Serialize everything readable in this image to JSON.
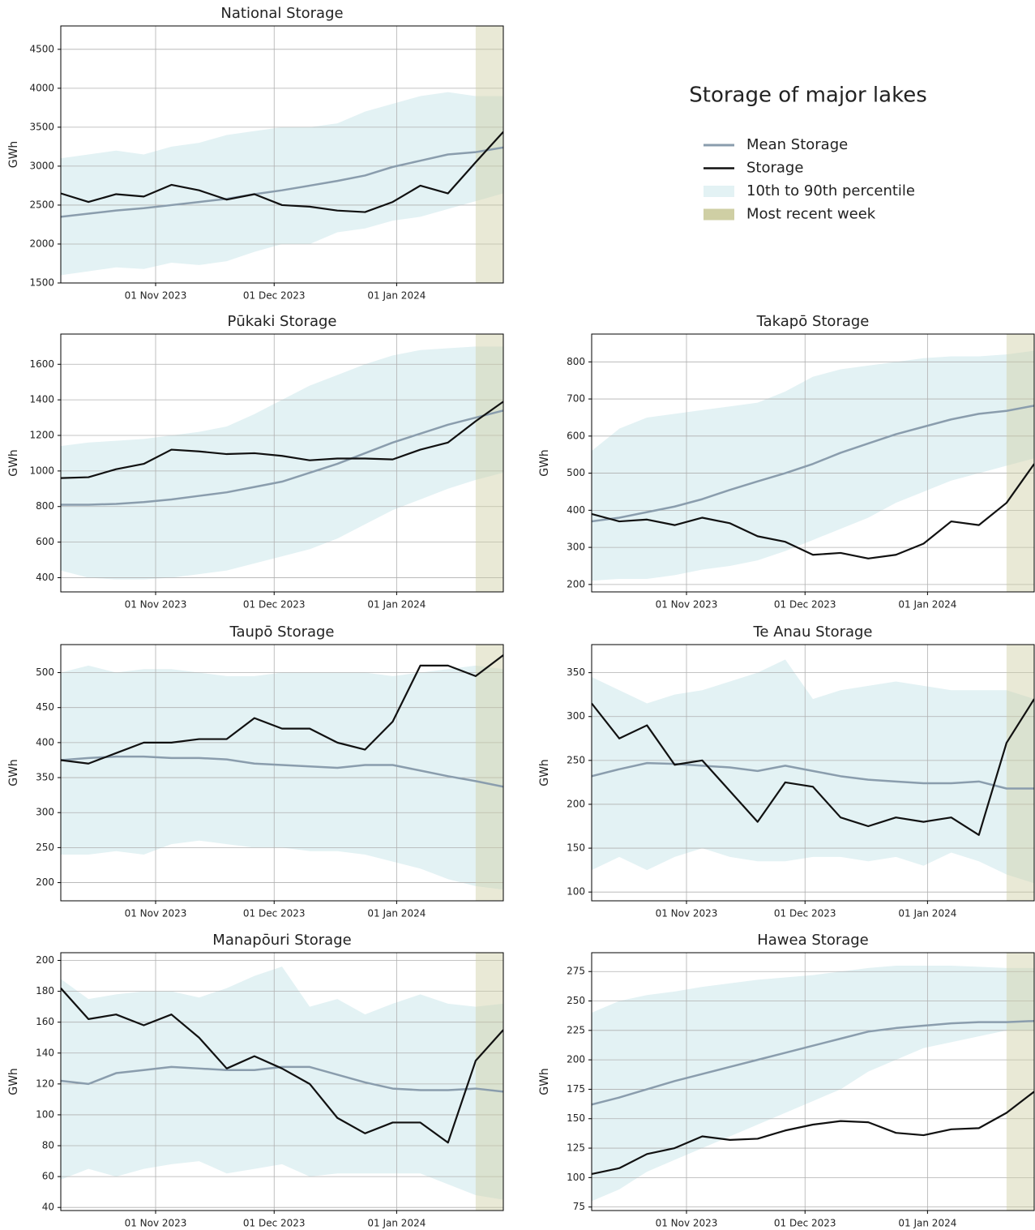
{
  "title": "Storage of major lakes",
  "legend": [
    {
      "name": "Mean Storage",
      "color": "#8a9dad"
    },
    {
      "name": "Storage",
      "color": "#111111"
    },
    {
      "name": "10th to 90th percentile",
      "color": "#e3f2f4"
    },
    {
      "name": "Most recent week",
      "color": "#cfcfa4"
    }
  ],
  "recent_week": [
    "2024-01-21",
    "2024-01-28"
  ],
  "chart_data": [
    {
      "type": "line",
      "title": "National Storage",
      "ylabel": "GWh",
      "grid": true,
      "x": [
        "2023-10-08",
        "2023-10-15",
        "2023-10-22",
        "2023-10-29",
        "2023-11-05",
        "2023-11-12",
        "2023-11-19",
        "2023-11-26",
        "2023-12-03",
        "2023-12-10",
        "2023-12-17",
        "2023-12-24",
        "2023-12-31",
        "2024-01-07",
        "2024-01-14",
        "2024-01-21",
        "2024-01-28"
      ],
      "xlim": [
        "2023-10-08",
        "2024-01-28"
      ],
      "xticks": [
        {
          "value": "2023-11-01",
          "label": "01 Nov 2023"
        },
        {
          "value": "2023-12-01",
          "label": "01 Dec 2023"
        },
        {
          "value": "2024-01-01",
          "label": "01 Jan 2024"
        }
      ],
      "ylim": [
        1500,
        4800
      ],
      "yticks": [
        1500,
        2000,
        2500,
        3000,
        3500,
        4000,
        4500
      ],
      "storage": [
        2650,
        2540,
        2640,
        2610,
        2760,
        2690,
        2570,
        2640,
        2500,
        2480,
        2430,
        2410,
        2540,
        2750,
        2650,
        3050,
        3440
      ],
      "mean": [
        2350,
        2390,
        2430,
        2460,
        2500,
        2540,
        2580,
        2640,
        2690,
        2750,
        2810,
        2880,
        2990,
        3070,
        3150,
        3180,
        3240
      ],
      "p10": [
        1600,
        1650,
        1700,
        1680,
        1760,
        1730,
        1780,
        1900,
        2000,
        2000,
        2150,
        2200,
        2300,
        2350,
        2450,
        2550,
        2650
      ],
      "p90": [
        3100,
        3150,
        3200,
        3150,
        3250,
        3300,
        3400,
        3450,
        3500,
        3500,
        3550,
        3700,
        3800,
        3900,
        3950,
        3900,
        3900
      ]
    },
    {
      "type": "line",
      "title": "Pūkaki Storage",
      "ylabel": "GWh",
      "grid": true,
      "x": [
        "2023-10-08",
        "2023-10-15",
        "2023-10-22",
        "2023-10-29",
        "2023-11-05",
        "2023-11-12",
        "2023-11-19",
        "2023-11-26",
        "2023-12-03",
        "2023-12-10",
        "2023-12-17",
        "2023-12-24",
        "2023-12-31",
        "2024-01-07",
        "2024-01-14",
        "2024-01-21",
        "2024-01-28"
      ],
      "xlim": [
        "2023-10-08",
        "2024-01-28"
      ],
      "xticks": [
        {
          "value": "2023-11-01",
          "label": "01 Nov 2023"
        },
        {
          "value": "2023-12-01",
          "label": "01 Dec 2023"
        },
        {
          "value": "2024-01-01",
          "label": "01 Jan 2024"
        }
      ],
      "ylim": [
        320,
        1770
      ],
      "yticks": [
        400,
        600,
        800,
        1000,
        1200,
        1400,
        1600
      ],
      "storage": [
        960,
        965,
        1010,
        1040,
        1120,
        1110,
        1095,
        1100,
        1085,
        1060,
        1070,
        1070,
        1065,
        1120,
        1160,
        1280,
        1390
      ],
      "mean": [
        810,
        810,
        815,
        825,
        840,
        860,
        880,
        910,
        940,
        990,
        1040,
        1100,
        1160,
        1210,
        1260,
        1300,
        1340
      ],
      "p10": [
        440,
        400,
        390,
        390,
        400,
        420,
        440,
        480,
        520,
        560,
        620,
        700,
        780,
        840,
        900,
        950,
        990
      ],
      "p90": [
        1140,
        1160,
        1170,
        1180,
        1200,
        1220,
        1250,
        1320,
        1400,
        1480,
        1540,
        1600,
        1650,
        1680,
        1690,
        1700,
        1700
      ]
    },
    {
      "type": "line",
      "title": "Takapō Storage",
      "ylabel": "GWh",
      "grid": true,
      "x": [
        "2023-10-08",
        "2023-10-15",
        "2023-10-22",
        "2023-10-29",
        "2023-11-05",
        "2023-11-12",
        "2023-11-19",
        "2023-11-26",
        "2023-12-03",
        "2023-12-10",
        "2023-12-17",
        "2023-12-24",
        "2023-12-31",
        "2024-01-07",
        "2024-01-14",
        "2024-01-21",
        "2024-01-28"
      ],
      "xlim": [
        "2023-10-08",
        "2024-01-28"
      ],
      "xticks": [
        {
          "value": "2023-11-01",
          "label": "01 Nov 2023"
        },
        {
          "value": "2023-12-01",
          "label": "01 Dec 2023"
        },
        {
          "value": "2024-01-01",
          "label": "01 Jan 2024"
        }
      ],
      "ylim": [
        180,
        875
      ],
      "yticks": [
        200,
        300,
        400,
        500,
        600,
        700,
        800
      ],
      "storage": [
        390,
        370,
        375,
        360,
        380,
        365,
        330,
        315,
        280,
        285,
        270,
        280,
        310,
        370,
        360,
        420,
        525
      ],
      "mean": [
        370,
        380,
        395,
        410,
        430,
        455,
        478,
        500,
        525,
        555,
        580,
        605,
        625,
        645,
        660,
        668,
        682
      ],
      "p10": [
        210,
        215,
        215,
        225,
        240,
        250,
        265,
        290,
        320,
        350,
        380,
        420,
        450,
        480,
        500,
        520,
        540
      ],
      "p90": [
        560,
        620,
        650,
        660,
        670,
        680,
        690,
        720,
        760,
        780,
        790,
        800,
        810,
        815,
        815,
        820,
        830
      ]
    },
    {
      "type": "line",
      "title": "Taupō Storage",
      "ylabel": "GWh",
      "grid": true,
      "x": [
        "2023-10-08",
        "2023-10-15",
        "2023-10-22",
        "2023-10-29",
        "2023-11-05",
        "2023-11-12",
        "2023-11-19",
        "2023-11-26",
        "2023-12-03",
        "2023-12-10",
        "2023-12-17",
        "2023-12-24",
        "2023-12-31",
        "2024-01-07",
        "2024-01-14",
        "2024-01-21",
        "2024-01-28"
      ],
      "xlim": [
        "2023-10-08",
        "2024-01-28"
      ],
      "xticks": [
        {
          "value": "2023-11-01",
          "label": "01 Nov 2023"
        },
        {
          "value": "2023-12-01",
          "label": "01 Dec 2023"
        },
        {
          "value": "2024-01-01",
          "label": "01 Jan 2024"
        }
      ],
      "ylim": [
        174,
        540
      ],
      "yticks": [
        200,
        250,
        300,
        350,
        400,
        450,
        500
      ],
      "storage": [
        375,
        370,
        385,
        400,
        400,
        405,
        405,
        435,
        420,
        420,
        400,
        390,
        430,
        510,
        510,
        495,
        525
      ],
      "mean": [
        375,
        378,
        380,
        380,
        378,
        378,
        376,
        370,
        368,
        366,
        364,
        368,
        368,
        360,
        352,
        345,
        337
      ],
      "p10": [
        240,
        240,
        245,
        240,
        255,
        260,
        255,
        250,
        250,
        245,
        245,
        240,
        230,
        220,
        205,
        195,
        190
      ],
      "p90": [
        500,
        510,
        500,
        505,
        505,
        500,
        495,
        495,
        500,
        500,
        500,
        500,
        495,
        500,
        505,
        510,
        505
      ]
    },
    {
      "type": "line",
      "title": "Te Anau Storage",
      "ylabel": "GWh",
      "grid": true,
      "x": [
        "2023-10-08",
        "2023-10-15",
        "2023-10-22",
        "2023-10-29",
        "2023-11-05",
        "2023-11-12",
        "2023-11-19",
        "2023-11-26",
        "2023-12-03",
        "2023-12-10",
        "2023-12-17",
        "2023-12-24",
        "2023-12-31",
        "2024-01-07",
        "2024-01-14",
        "2024-01-21",
        "2024-01-28"
      ],
      "xlim": [
        "2023-10-08",
        "2024-01-28"
      ],
      "xticks": [
        {
          "value": "2023-11-01",
          "label": "01 Nov 2023"
        },
        {
          "value": "2023-12-01",
          "label": "01 Dec 2023"
        },
        {
          "value": "2024-01-01",
          "label": "01 Jan 2024"
        }
      ],
      "ylim": [
        90,
        382
      ],
      "yticks": [
        100,
        150,
        200,
        250,
        300,
        350
      ],
      "storage": [
        315,
        275,
        290,
        245,
        250,
        215,
        180,
        225,
        220,
        185,
        175,
        185,
        180,
        185,
        165,
        270,
        320
      ],
      "mean": [
        232,
        240,
        247,
        246,
        244,
        242,
        238,
        244,
        238,
        232,
        228,
        226,
        224,
        224,
        226,
        218,
        218
      ],
      "p10": [
        125,
        140,
        125,
        140,
        150,
        140,
        135,
        135,
        140,
        140,
        135,
        140,
        130,
        145,
        135,
        120,
        110
      ],
      "p90": [
        345,
        330,
        315,
        325,
        330,
        340,
        350,
        365,
        320,
        330,
        335,
        340,
        335,
        330,
        330,
        330,
        320
      ]
    },
    {
      "type": "line",
      "title": "Manapōuri  Storage",
      "ylabel": "GWh",
      "grid": true,
      "x": [
        "2023-10-08",
        "2023-10-15",
        "2023-10-22",
        "2023-10-29",
        "2023-11-05",
        "2023-11-12",
        "2023-11-19",
        "2023-11-26",
        "2023-12-03",
        "2023-12-10",
        "2023-12-17",
        "2023-12-24",
        "2023-12-31",
        "2024-01-07",
        "2024-01-14",
        "2024-01-21",
        "2024-01-28"
      ],
      "xlim": [
        "2023-10-08",
        "2024-01-28"
      ],
      "xticks": [
        {
          "value": "2023-11-01",
          "label": "01 Nov 2023"
        },
        {
          "value": "2023-12-01",
          "label": "01 Dec 2023"
        },
        {
          "value": "2024-01-01",
          "label": "01 Jan 2024"
        }
      ],
      "ylim": [
        38,
        205
      ],
      "yticks": [
        40,
        60,
        80,
        100,
        120,
        140,
        160,
        180,
        200
      ],
      "storage": [
        182,
        162,
        165,
        158,
        165,
        150,
        130,
        138,
        130,
        120,
        98,
        88,
        95,
        95,
        82,
        135,
        155
      ],
      "mean": [
        122,
        120,
        127,
        129,
        131,
        130,
        129,
        129,
        131,
        131,
        126,
        121,
        117,
        116,
        116,
        117,
        115
      ],
      "p10": [
        58,
        65,
        60,
        65,
        68,
        70,
        62,
        65,
        68,
        60,
        62,
        62,
        62,
        62,
        55,
        48,
        45
      ],
      "p90": [
        188,
        175,
        178,
        180,
        180,
        176,
        182,
        190,
        196,
        170,
        175,
        165,
        172,
        178,
        172,
        170,
        172
      ]
    },
    {
      "type": "line",
      "title": "Hawea Storage",
      "ylabel": "GWh",
      "grid": true,
      "x": [
        "2023-10-08",
        "2023-10-15",
        "2023-10-22",
        "2023-10-29",
        "2023-11-05",
        "2023-11-12",
        "2023-11-19",
        "2023-11-26",
        "2023-12-03",
        "2023-12-10",
        "2023-12-17",
        "2023-12-24",
        "2023-12-31",
        "2024-01-07",
        "2024-01-14",
        "2024-01-21",
        "2024-01-28"
      ],
      "xlim": [
        "2023-10-08",
        "2024-01-28"
      ],
      "xticks": [
        {
          "value": "2023-11-01",
          "label": "01 Nov 2023"
        },
        {
          "value": "2023-12-01",
          "label": "01 Dec 2023"
        },
        {
          "value": "2024-01-01",
          "label": "01 Jan 2024"
        }
      ],
      "ylim": [
        72,
        291
      ],
      "yticks": [
        75,
        100,
        125,
        150,
        175,
        200,
        225,
        250,
        275
      ],
      "storage": [
        103,
        108,
        120,
        125,
        135,
        132,
        133,
        140,
        145,
        148,
        147,
        138,
        136,
        141,
        142,
        155,
        173
      ],
      "mean": [
        162,
        168,
        175,
        182,
        188,
        194,
        200,
        206,
        212,
        218,
        224,
        227,
        229,
        231,
        232,
        232,
        233
      ],
      "p10": [
        80,
        90,
        105,
        115,
        125,
        135,
        145,
        155,
        165,
        175,
        190,
        200,
        210,
        215,
        220,
        225,
        225
      ],
      "p90": [
        240,
        250,
        255,
        258,
        262,
        265,
        268,
        270,
        272,
        275,
        278,
        280,
        280,
        280,
        279,
        278,
        278
      ]
    }
  ]
}
